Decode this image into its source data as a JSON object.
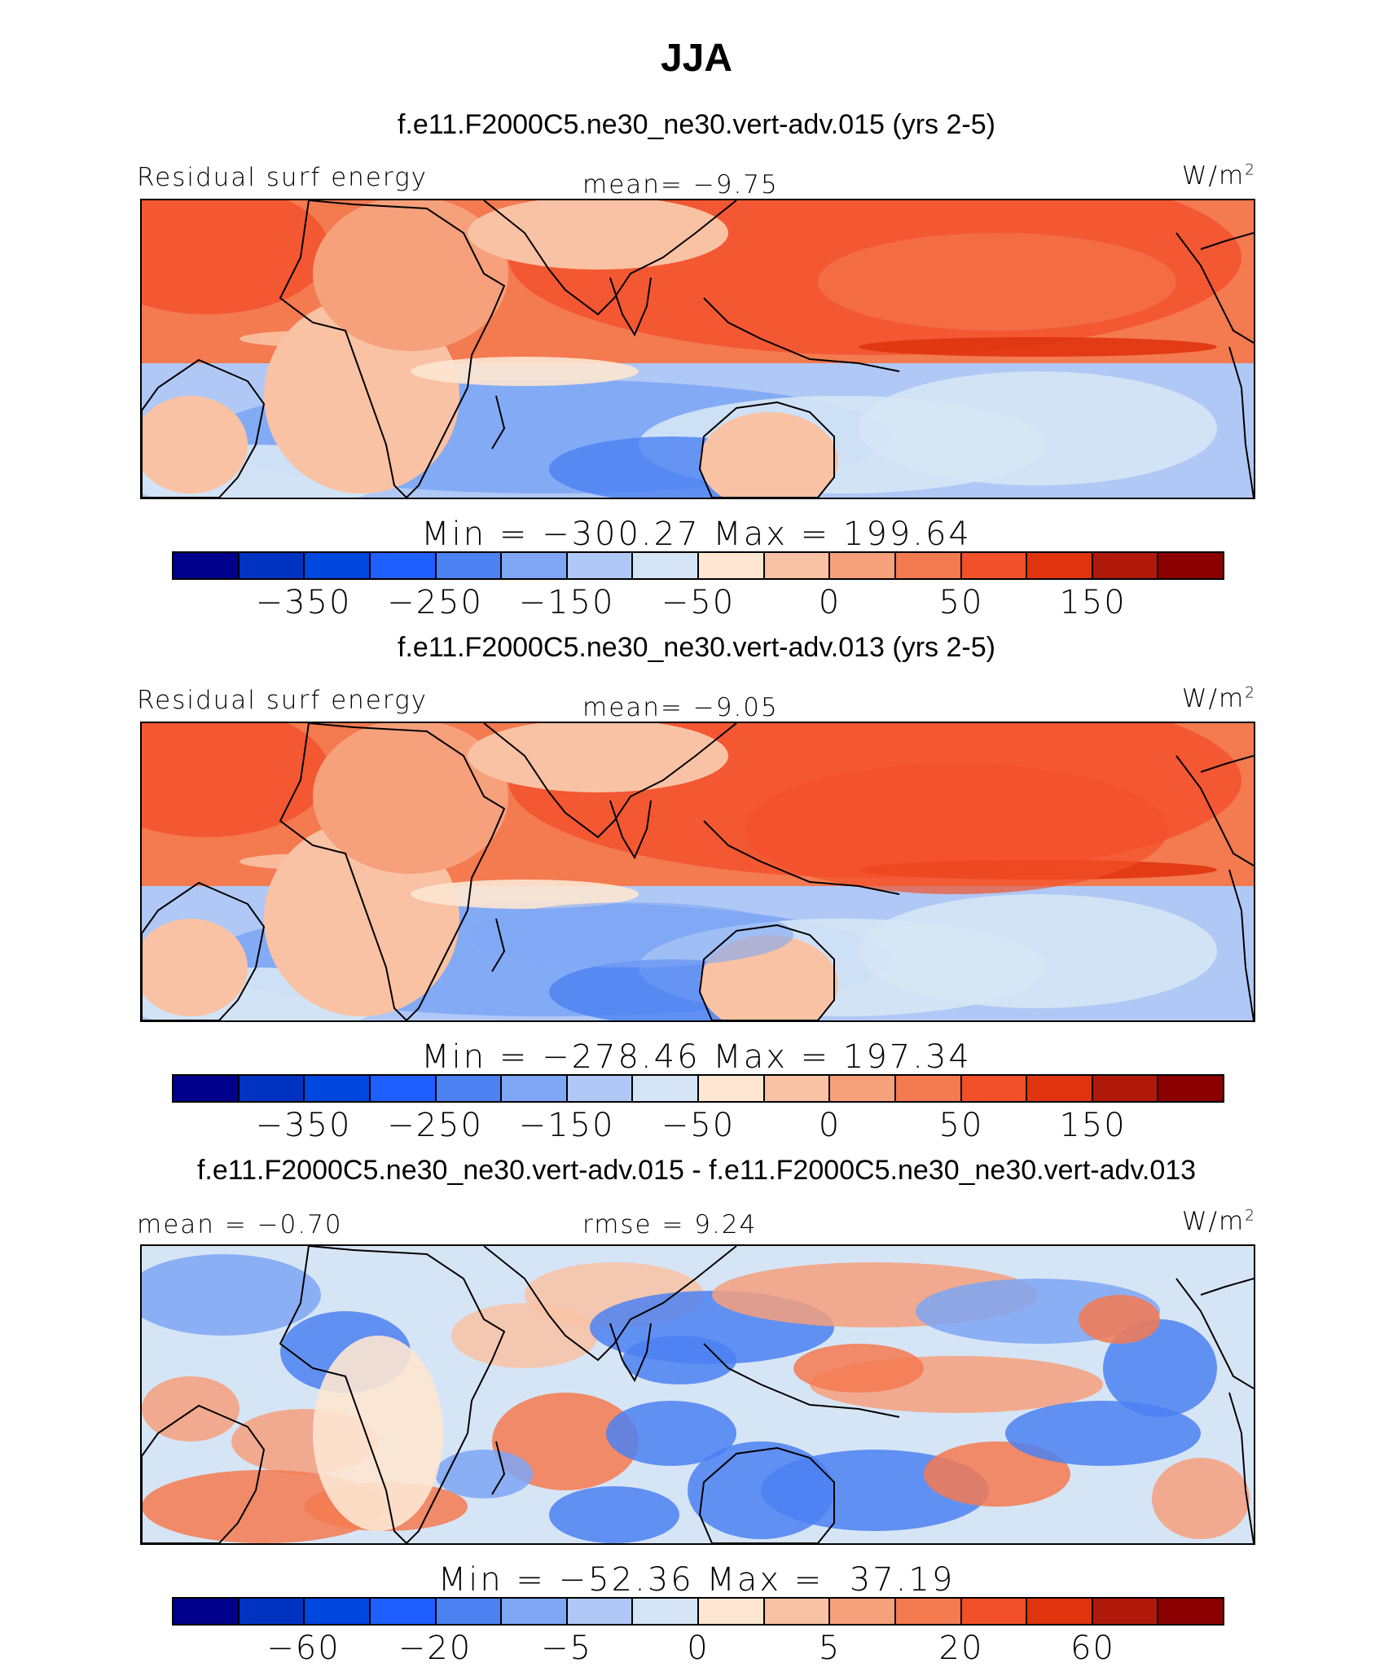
{
  "title": "JJA",
  "colors": {
    "scale": [
      "#00008b",
      "#0033c2",
      "#0047e0",
      "#1f5eff",
      "#4c81f2",
      "#7ea6f5",
      "#b0c8f5",
      "#d6e5f5",
      "#fde6d2",
      "#f9c2a4",
      "#f6a07c",
      "#f47a50",
      "#f2502a",
      "#e0340f",
      "#b0190a",
      "#8b0000"
    ]
  },
  "panels": [
    {
      "case_title": "f.e11.F2000C5.ne30_ne30.vert-adv.015 (yrs 2-5)",
      "left_label": "Residual surf energy",
      "center_label": "mean=  −9.75",
      "unit": "W/m",
      "unit_sup": "2",
      "min_max": "Min = −300.27 Max = 199.64",
      "ticks": [
        "−350",
        "−250",
        "−150",
        "−50",
        "0",
        "50",
        "150"
      ],
      "variant": "a"
    },
    {
      "case_title": "f.e11.F2000C5.ne30_ne30.vert-adv.013 (yrs 2-5)",
      "left_label": "Residual surf energy",
      "center_label": "mean=  −9.05",
      "unit": "W/m",
      "unit_sup": "2",
      "min_max": "Min = −278.46 Max = 197.34",
      "ticks": [
        "−350",
        "−250",
        "−150",
        "−50",
        "0",
        "50",
        "150"
      ],
      "variant": "b"
    },
    {
      "case_title": "f.e11.F2000C5.ne30_ne30.vert-adv.015 - f.e11.F2000C5.ne30_ne30.vert-adv.013",
      "left_label": "mean =  −0.70",
      "center_label": "rmse =    9.24",
      "unit": "W/m",
      "unit_sup": "2",
      "min_max": "Min = −52.36 Max =  37.19",
      "ticks": [
        "−60",
        "−20",
        "−5",
        "0",
        "5",
        "20",
        "60"
      ],
      "variant": "diff"
    }
  ],
  "chart_data": [
    {
      "type": "heatmap",
      "title": "f.e11.F2000C5.ne30_ne30.vert-adv.015 (yrs 2-5)",
      "subtitle": "Residual surf energy",
      "season": "JJA",
      "units": "W/m2",
      "mean": -9.75,
      "min": -300.27,
      "max": 199.64,
      "colorbar_levels": 16,
      "colorbar_tick_labels": [
        -350,
        -250,
        -150,
        -50,
        0,
        50,
        150
      ],
      "lat_range": [
        -30,
        30
      ],
      "lon_range": [
        -60,
        300
      ]
    },
    {
      "type": "heatmap",
      "title": "f.e11.F2000C5.ne30_ne30.vert-adv.013 (yrs 2-5)",
      "subtitle": "Residual surf energy",
      "season": "JJA",
      "units": "W/m2",
      "mean": -9.05,
      "min": -278.46,
      "max": 197.34,
      "colorbar_levels": 16,
      "colorbar_tick_labels": [
        -350,
        -250,
        -150,
        -50,
        0,
        50,
        150
      ],
      "lat_range": [
        -30,
        30
      ],
      "lon_range": [
        -60,
        300
      ]
    },
    {
      "type": "heatmap",
      "title": "f.e11.F2000C5.ne30_ne30.vert-adv.015 - f.e11.F2000C5.ne30_ne30.vert-adv.013",
      "season": "JJA",
      "units": "W/m2",
      "mean": -0.7,
      "rmse": 9.24,
      "min": -52.36,
      "max": 37.19,
      "colorbar_levels": 16,
      "colorbar_tick_labels": [
        -60,
        -20,
        -5,
        0,
        5,
        20,
        60
      ],
      "lat_range": [
        -30,
        30
      ],
      "lon_range": [
        -60,
        300
      ]
    }
  ]
}
